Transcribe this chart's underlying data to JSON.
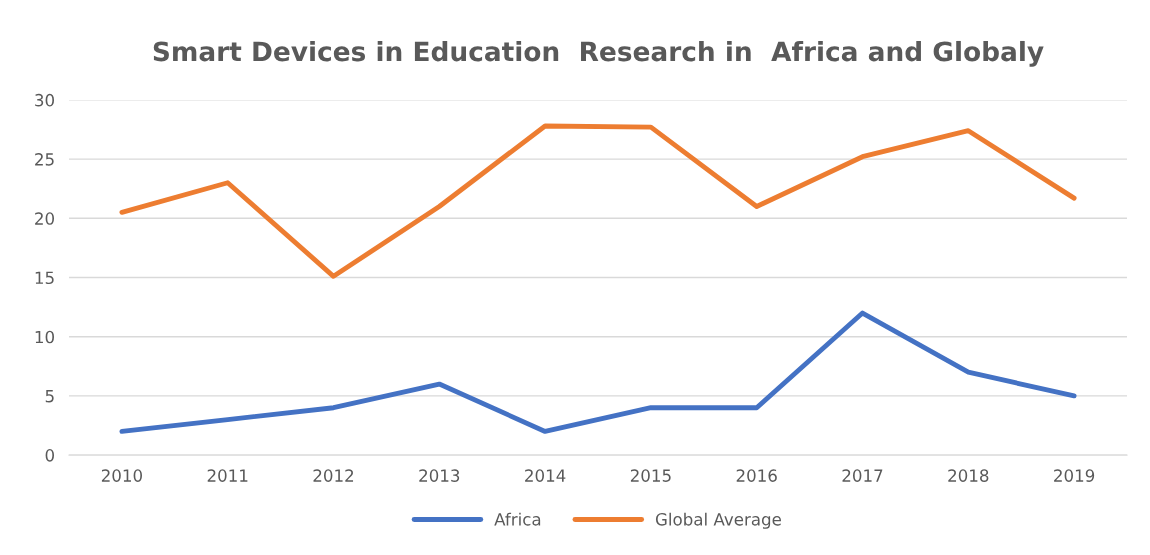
{
  "chart_data": {
    "type": "line",
    "title": "Smart Devices in Education  Research in  Africa and Globaly",
    "categories": [
      "2010",
      "2011",
      "2012",
      "2013",
      "2014",
      "2015",
      "2016",
      "2017",
      "2018",
      "2019"
    ],
    "series": [
      {
        "name": "Africa",
        "color": "#4472c4",
        "values": [
          2,
          3,
          4,
          6,
          2,
          4,
          4,
          12,
          7,
          5
        ]
      },
      {
        "name": "Global Average",
        "color": "#ed7d31",
        "values": [
          20.5,
          23,
          15.1,
          21,
          27.8,
          27.7,
          21,
          25.2,
          27.4,
          21.7
        ]
      }
    ],
    "ylim": [
      0,
      30
    ],
    "yticks": [
      0,
      5,
      10,
      15,
      20,
      25,
      30
    ],
    "grid": "y",
    "legend": "bottom",
    "marker": "none",
    "line_style": "solid"
  }
}
